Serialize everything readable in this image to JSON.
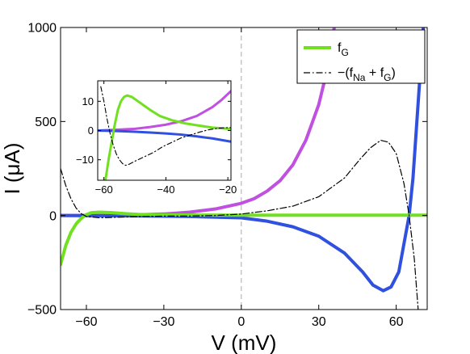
{
  "chart_data": [
    {
      "id": "main",
      "type": "line",
      "xlabel": "V (mV)",
      "ylabel": "I (μA)",
      "xlim": [
        -70,
        72
      ],
      "ylim": [
        -500,
        1000
      ],
      "xticks": [
        -60,
        -30,
        0,
        30,
        60
      ],
      "yticks": [
        -500,
        0,
        500,
        1000
      ],
      "reference_line_x": 0,
      "legend": {
        "placement": "top-right",
        "entries": [
          {
            "label": "f",
            "sub": "G",
            "series": "green"
          },
          {
            "label": "−(f",
            "sub1": "Na",
            "mid": " + f",
            "sub2": "G",
            "tail": ")",
            "series": "dashdot"
          }
        ]
      },
      "series": [
        {
          "key": "magenta",
          "color": "#c050e0",
          "style": "solid",
          "points": [
            [
              -70,
              0
            ],
            [
              -50,
              0
            ],
            [
              -30,
              8
            ],
            [
              -20,
              18
            ],
            [
              -10,
              35
            ],
            [
              0,
              65
            ],
            [
              5,
              90
            ],
            [
              10,
              130
            ],
            [
              15,
              185
            ],
            [
              20,
              270
            ],
            [
              25,
              400
            ],
            [
              30,
              590
            ],
            [
              33,
              760
            ],
            [
              36,
              1000
            ]
          ]
        },
        {
          "key": "blue",
          "color": "#3050e0",
          "style": "solid",
          "points": [
            [
              -70,
              0
            ],
            [
              -40,
              -2
            ],
            [
              -20,
              -5
            ],
            [
              0,
              -12
            ],
            [
              10,
              -30
            ],
            [
              20,
              -60
            ],
            [
              30,
              -110
            ],
            [
              40,
              -200
            ],
            [
              47,
              -300
            ],
            [
              51,
              -370
            ],
            [
              55,
              -400
            ],
            [
              58,
              -380
            ],
            [
              61,
              -300
            ],
            [
              63,
              -150
            ],
            [
              65,
              0
            ],
            [
              66.5,
              200
            ],
            [
              68,
              500
            ],
            [
              69.5,
              800
            ],
            [
              70.5,
              1000
            ]
          ]
        },
        {
          "key": "green",
          "color": "#70e020",
          "style": "solid",
          "points": [
            [
              -70,
              -260
            ],
            [
              -68,
              -160
            ],
            [
              -66,
              -90
            ],
            [
              -64,
              -45
            ],
            [
              -62,
              -15
            ],
            [
              -60,
              5
            ],
            [
              -58,
              15
            ],
            [
              -55,
              18
            ],
            [
              -50,
              15
            ],
            [
              -45,
              10
            ],
            [
              -40,
              6
            ],
            [
              -30,
              3
            ],
            [
              0,
              2
            ],
            [
              72,
              2
            ]
          ]
        },
        {
          "key": "dashdot",
          "color": "#000000",
          "style": "dashdot",
          "points": [
            [
              -70,
              250
            ],
            [
              -68,
              160
            ],
            [
              -66,
              90
            ],
            [
              -64,
              40
            ],
            [
              -62,
              10
            ],
            [
              -60,
              -5
            ],
            [
              -55,
              -12
            ],
            [
              -50,
              -10
            ],
            [
              -40,
              -6
            ],
            [
              -30,
              -3
            ],
            [
              -20,
              -3
            ],
            [
              -10,
              0
            ],
            [
              0,
              8
            ],
            [
              10,
              25
            ],
            [
              20,
              50
            ],
            [
              30,
              100
            ],
            [
              40,
              200
            ],
            [
              46,
              300
            ],
            [
              50,
              360
            ],
            [
              54,
              400
            ],
            [
              57,
              390
            ],
            [
              60,
              330
            ],
            [
              63,
              170
            ],
            [
              65,
              0
            ],
            [
              67,
              -230
            ],
            [
              68.5,
              -500
            ]
          ]
        }
      ]
    },
    {
      "id": "inset",
      "type": "line",
      "xlim": [
        -62,
        -19
      ],
      "ylim": [
        -17,
        17
      ],
      "xticks": [
        -60,
        -40,
        -20
      ],
      "yticks": [
        -10,
        0,
        10
      ],
      "series": [
        {
          "key": "magenta",
          "color": "#c050e0",
          "style": "solid",
          "points": [
            [
              -62,
              0
            ],
            [
              -55,
              0.3
            ],
            [
              -50,
              0.6
            ],
            [
              -45,
              1.2
            ],
            [
              -40,
              2
            ],
            [
              -35,
              3.2
            ],
            [
              -30,
              5
            ],
            [
              -25,
              8
            ],
            [
              -22,
              10.5
            ],
            [
              -19,
              13.5
            ]
          ]
        },
        {
          "key": "blue",
          "color": "#3050e0",
          "style": "solid",
          "points": [
            [
              -62,
              0
            ],
            [
              -55,
              -0.2
            ],
            [
              -50,
              -0.4
            ],
            [
              -45,
              -0.7
            ],
            [
              -40,
              -1
            ],
            [
              -35,
              -1.4
            ],
            [
              -30,
              -2
            ],
            [
              -25,
              -2.7
            ],
            [
              -19,
              -3.8
            ]
          ]
        },
        {
          "key": "green",
          "color": "#70e020",
          "style": "solid",
          "points": [
            [
              -59.5,
              -17
            ],
            [
              -58.5,
              -10
            ],
            [
              -57.5,
              -4
            ],
            [
              -56.5,
              2
            ],
            [
              -55.5,
              7
            ],
            [
              -54.5,
              10
            ],
            [
              -53.5,
              11.5
            ],
            [
              -52.5,
              12
            ],
            [
              -51,
              11.5
            ],
            [
              -49,
              10
            ],
            [
              -47,
              8.5
            ],
            [
              -45,
              7
            ],
            [
              -42,
              5
            ],
            [
              -38,
              3.5
            ],
            [
              -34,
              2.5
            ],
            [
              -30,
              1.8
            ],
            [
              -25,
              1
            ],
            [
              -19,
              0.5
            ]
          ]
        },
        {
          "key": "dashdot",
          "color": "#000000",
          "style": "dashdot",
          "points": [
            [
              -61,
              15
            ],
            [
              -60,
              10
            ],
            [
              -59,
              4
            ],
            [
              -58,
              -1
            ],
            [
              -57,
              -5
            ],
            [
              -56,
              -8
            ],
            [
              -55,
              -10
            ],
            [
              -54,
              -11.3
            ],
            [
              -53,
              -11.9
            ],
            [
              -52,
              -11.6
            ],
            [
              -50,
              -10.5
            ],
            [
              -47,
              -9
            ],
            [
              -44,
              -7.5
            ],
            [
              -41,
              -5.5
            ],
            [
              -38,
              -4
            ],
            [
              -35,
              -2.5
            ],
            [
              -32,
              -1.5
            ],
            [
              -29,
              -0.5
            ],
            [
              -26,
              0.3
            ],
            [
              -23,
              0.8
            ],
            [
              -20,
              1
            ],
            [
              -19,
              1
            ]
          ]
        }
      ]
    }
  ]
}
